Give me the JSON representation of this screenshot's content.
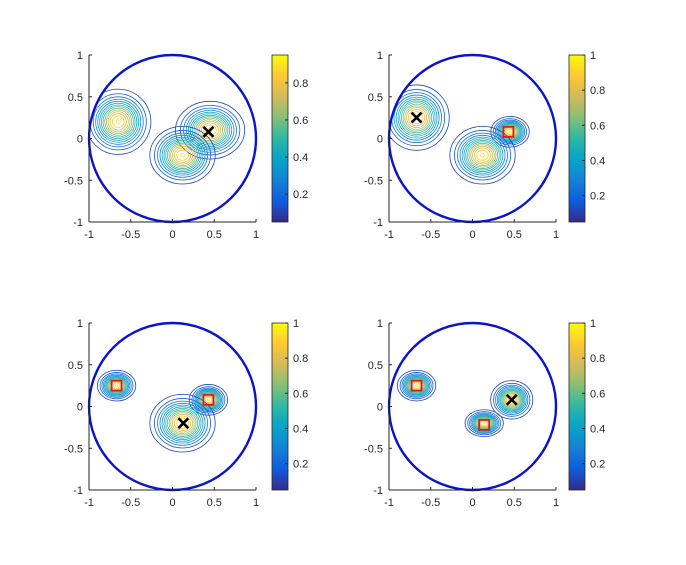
{
  "colors": {
    "circle": "#0a14c8",
    "marker_cross": "#000000",
    "marker_square": "#e8141e",
    "axis": "#262626",
    "parula": [
      "#352a87",
      "#0f5cdd",
      "#1481d6",
      "#06a4ca",
      "#2eb7a4",
      "#87bf77",
      "#d1bb59",
      "#fec832",
      "#f9fb0e"
    ]
  },
  "chart_data": [
    {
      "type": "contour",
      "title": "",
      "xlabel": "",
      "ylabel": "",
      "xlim": [
        -1,
        1
      ],
      "ylim": [
        -1,
        1
      ],
      "xticks": [
        "-1",
        "-0.5",
        "0",
        "0.5",
        "1"
      ],
      "yticks": [
        "1",
        "0.5",
        "0",
        "-0.5",
        "-1"
      ],
      "colorbar": {
        "range": [
          0.05,
          0.95
        ],
        "ticks": [
          "0.8",
          "0.6",
          "0.4",
          "0.2"
        ],
        "tick_values": [
          0.8,
          0.6,
          0.4,
          0.2
        ]
      },
      "peaks": [
        {
          "x": -0.65,
          "y": 0.2,
          "height": 0.95,
          "sx": 0.17,
          "sy": 0.17
        },
        {
          "x": 0.45,
          "y": 0.1,
          "height": 0.9,
          "sx": 0.18,
          "sy": 0.15
        },
        {
          "x": 0.12,
          "y": -0.2,
          "height": 0.88,
          "sx": 0.17,
          "sy": 0.15
        }
      ],
      "markers": [
        {
          "type": "cross",
          "x": 0.43,
          "y": 0.08
        }
      ]
    },
    {
      "type": "contour",
      "title": "",
      "xlabel": "",
      "ylabel": "",
      "xlim": [
        -1,
        1
      ],
      "ylim": [
        -1,
        1
      ],
      "xticks": [
        "-1",
        "-0.5",
        "0",
        "0.5",
        "1"
      ],
      "yticks": [
        "1",
        "0.5",
        "0",
        "-0.5",
        "-1"
      ],
      "colorbar": {
        "range": [
          0.05,
          1.0
        ],
        "ticks": [
          "1",
          "0.8",
          "0.6",
          "0.4",
          "0.2"
        ],
        "tick_values": [
          1.0,
          0.8,
          0.6,
          0.4,
          0.2
        ]
      },
      "peaks": [
        {
          "x": -0.67,
          "y": 0.25,
          "height": 1.0,
          "sx": 0.17,
          "sy": 0.17
        },
        {
          "x": 0.45,
          "y": 0.08,
          "height": 0.85,
          "sx": 0.1,
          "sy": 0.08
        },
        {
          "x": 0.12,
          "y": -0.2,
          "height": 0.85,
          "sx": 0.17,
          "sy": 0.15
        }
      ],
      "markers": [
        {
          "type": "cross",
          "x": -0.67,
          "y": 0.25
        },
        {
          "type": "square",
          "x": 0.43,
          "y": 0.08
        }
      ]
    },
    {
      "type": "contour",
      "title": "",
      "xlabel": "",
      "ylabel": "",
      "xlim": [
        -1,
        1
      ],
      "ylim": [
        -1,
        1
      ],
      "xticks": [
        "-1",
        "-0.5",
        "0",
        "0.5",
        "1"
      ],
      "yticks": [
        "1",
        "0.5",
        "0",
        "-0.5",
        "-1"
      ],
      "colorbar": {
        "range": [
          0.05,
          1.0
        ],
        "ticks": [
          "1",
          "0.8",
          "0.6",
          "0.4",
          "0.2"
        ],
        "tick_values": [
          1.0,
          0.8,
          0.6,
          0.4,
          0.2
        ]
      },
      "peaks": [
        {
          "x": -0.67,
          "y": 0.25,
          "height": 1.0,
          "sx": 0.1,
          "sy": 0.08
        },
        {
          "x": 0.43,
          "y": 0.08,
          "height": 0.9,
          "sx": 0.1,
          "sy": 0.08
        },
        {
          "x": 0.12,
          "y": -0.2,
          "height": 0.9,
          "sx": 0.17,
          "sy": 0.15
        }
      ],
      "markers": [
        {
          "type": "square",
          "x": -0.67,
          "y": 0.25
        },
        {
          "type": "square",
          "x": 0.43,
          "y": 0.08
        },
        {
          "type": "cross",
          "x": 0.13,
          "y": -0.2
        }
      ]
    },
    {
      "type": "contour",
      "title": "",
      "xlabel": "",
      "ylabel": "",
      "xlim": [
        -1,
        1
      ],
      "ylim": [
        -1,
        1
      ],
      "xticks": [
        "-1",
        "-0.5",
        "0",
        "0.5",
        "1"
      ],
      "yticks": [
        "1",
        "0.5",
        "0",
        "-0.5",
        "-1"
      ],
      "colorbar": {
        "range": [
          0.05,
          1.0
        ],
        "ticks": [
          "1",
          "0.8",
          "0.6",
          "0.4",
          "0.2"
        ],
        "tick_values": [
          1.0,
          0.8,
          0.6,
          0.4,
          0.2
        ]
      },
      "peaks": [
        {
          "x": -0.67,
          "y": 0.25,
          "height": 1.0,
          "sx": 0.1,
          "sy": 0.08
        },
        {
          "x": 0.47,
          "y": 0.08,
          "height": 1.0,
          "sx": 0.11,
          "sy": 0.1
        },
        {
          "x": 0.14,
          "y": -0.2,
          "height": 0.9,
          "sx": 0.1,
          "sy": 0.07
        }
      ],
      "markers": [
        {
          "type": "square",
          "x": -0.67,
          "y": 0.25
        },
        {
          "type": "square",
          "x": 0.14,
          "y": -0.22
        },
        {
          "type": "cross",
          "x": 0.47,
          "y": 0.08
        }
      ]
    }
  ]
}
